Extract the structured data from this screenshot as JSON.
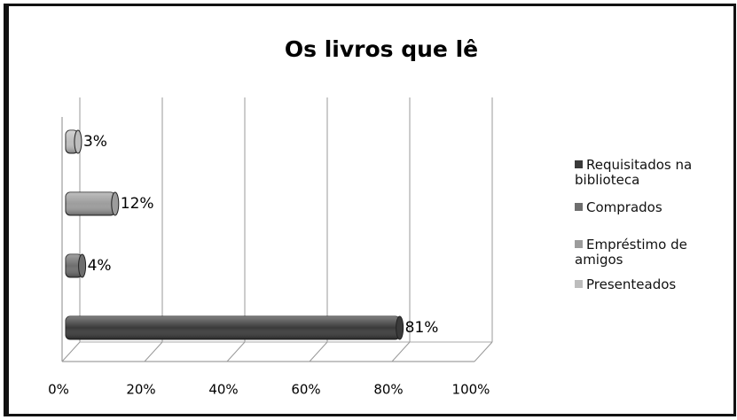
{
  "chart_data": {
    "type": "bar",
    "orientation": "horizontal",
    "title": "Os livros que lê",
    "categories": [
      "Requisitados na biblioteca",
      "Comprados",
      "Empréstimo de amigos",
      "Presenteados"
    ],
    "values": [
      81,
      4,
      12,
      3
    ],
    "value_labels": [
      "81%",
      "4%",
      "12%",
      "3%"
    ],
    "colors": [
      "#3a3a3a",
      "#6e6e6e",
      "#9c9c9c",
      "#bdbdbd"
    ],
    "xlim": [
      0,
      100
    ],
    "xticks": [
      {
        "value": 0,
        "label": "0%"
      },
      {
        "value": 20,
        "label": "20%"
      },
      {
        "value": 40,
        "label": "40%"
      },
      {
        "value": 60,
        "label": "60%"
      },
      {
        "value": 80,
        "label": "80%"
      },
      {
        "value": 100,
        "label": "100%"
      }
    ],
    "grid": true,
    "legend": "right"
  }
}
